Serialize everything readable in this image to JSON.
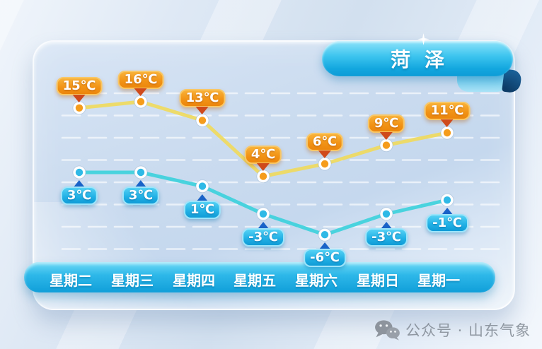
{
  "header": {
    "city": "菏泽"
  },
  "chart_data": {
    "type": "line",
    "categories": [
      "星期二",
      "星期三",
      "星期四",
      "星期五",
      "星期六",
      "星期日",
      "星期一"
    ],
    "series": [
      {
        "key": "high",
        "unit": "℃",
        "values": [
          15,
          16,
          13,
          4,
          6,
          9,
          11
        ]
      },
      {
        "key": "low",
        "unit": "℃",
        "values": [
          3,
          3,
          1,
          -3,
          -6,
          -3,
          -1
        ]
      }
    ],
    "grid": {
      "lines": 8,
      "style": "dashed-white"
    },
    "legend": false,
    "title": "菏泽"
  },
  "footer": {
    "brand": "公众号 · 山东气象"
  },
  "colors": {
    "high_line": "#eeda62",
    "high_dot": "#f59c1c",
    "high_arrow": "#cf4a1b",
    "low_line": "#41d2dc",
    "low_dot": "#2fb9e6",
    "low_arrow": "#1a63c8",
    "banner": "#13a7df",
    "daybar": "#2eb8e9",
    "gridline": "#ffffff"
  }
}
